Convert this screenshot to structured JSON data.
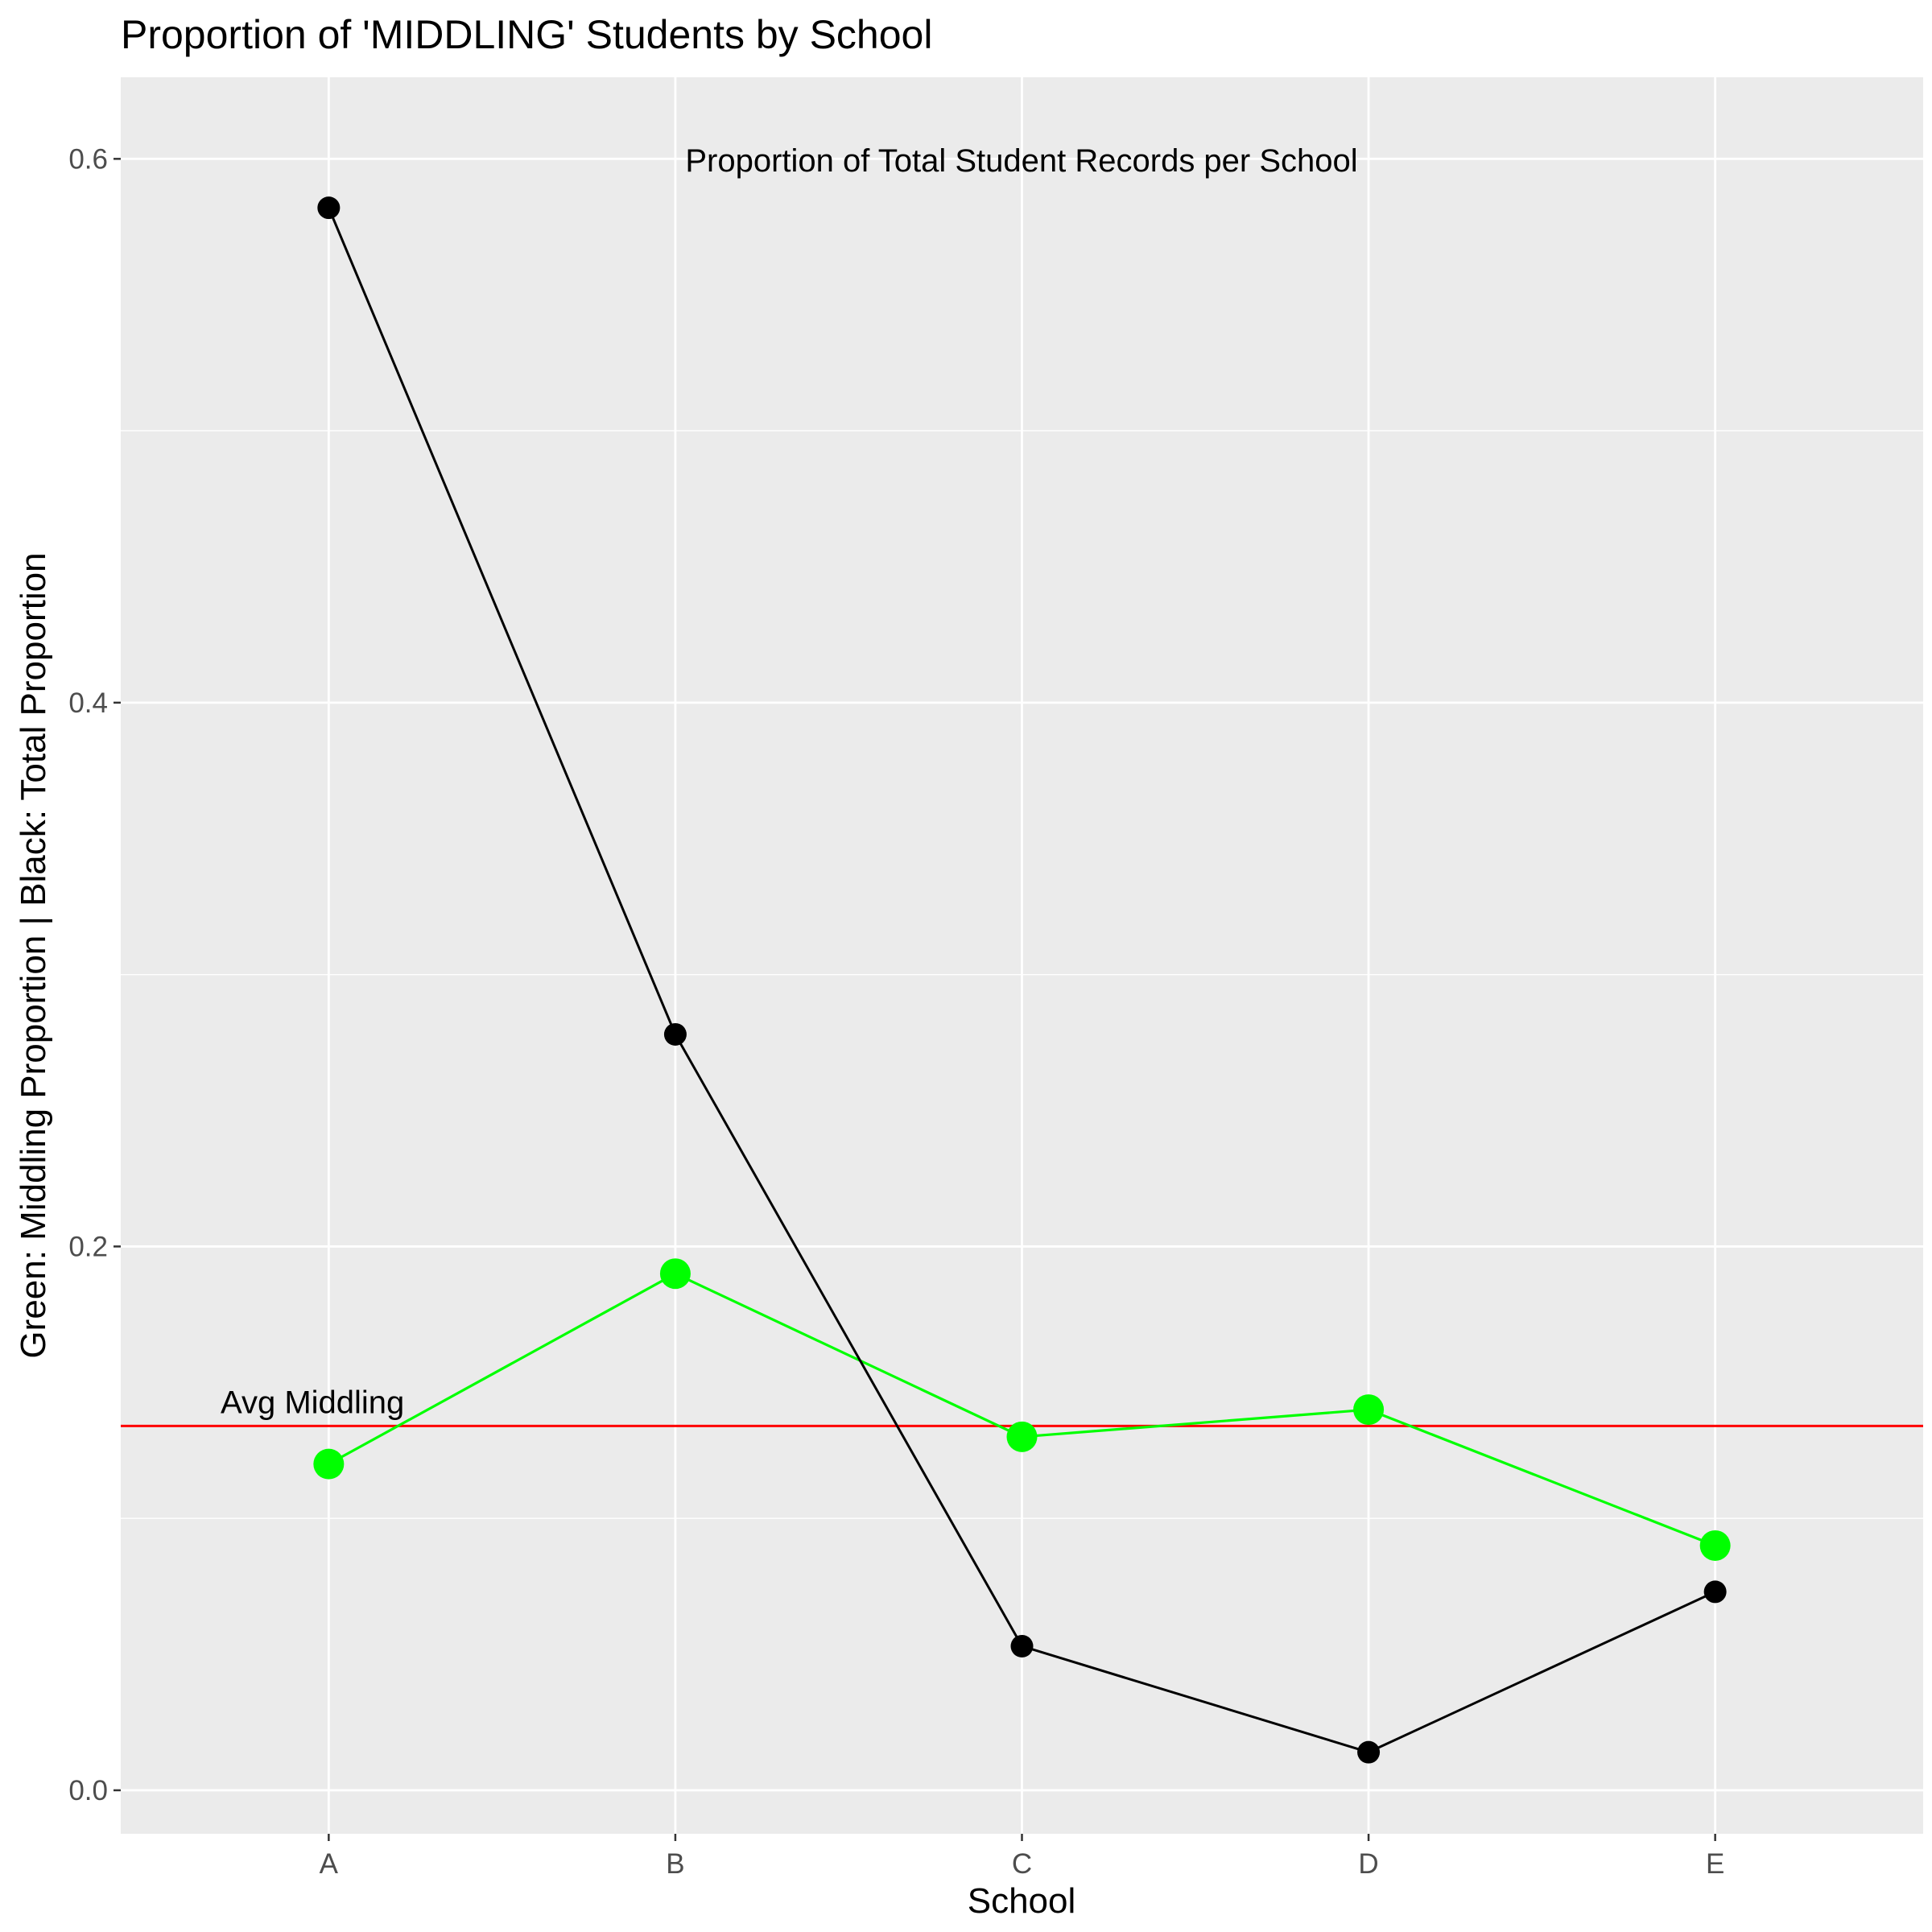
{
  "chart_data": {
    "type": "line",
    "title": "Proportion of 'MIDDLING' Students by School",
    "subtitle": "Proportion of Total Student Records per School",
    "xlabel": "School",
    "ylabel": "Green: Middling Proportion | Black: Total Proportion",
    "categories": [
      "A",
      "B",
      "C",
      "D",
      "E"
    ],
    "ylim": [
      -0.016,
      0.63
    ],
    "y_ticks": [
      {
        "value": 0.0,
        "label": "0.0"
      },
      {
        "value": 0.2,
        "label": "0.2"
      },
      {
        "value": 0.4,
        "label": "0.4"
      },
      {
        "value": 0.6,
        "label": "0.6"
      }
    ],
    "grid": true,
    "series": [
      {
        "name": "Middling Proportion",
        "color": "#00ff00",
        "values": [
          0.12,
          0.19,
          0.13,
          0.14,
          0.09
        ]
      },
      {
        "name": "Total Proportion",
        "color": "#000000",
        "values": [
          0.582,
          0.278,
          0.053,
          0.014,
          0.073
        ]
      }
    ],
    "reference_line": {
      "label": "Avg Middling",
      "value": 0.134,
      "color": "#ff0000"
    },
    "panel_background": "#ebebeb",
    "grid_color": "#ffffff"
  }
}
